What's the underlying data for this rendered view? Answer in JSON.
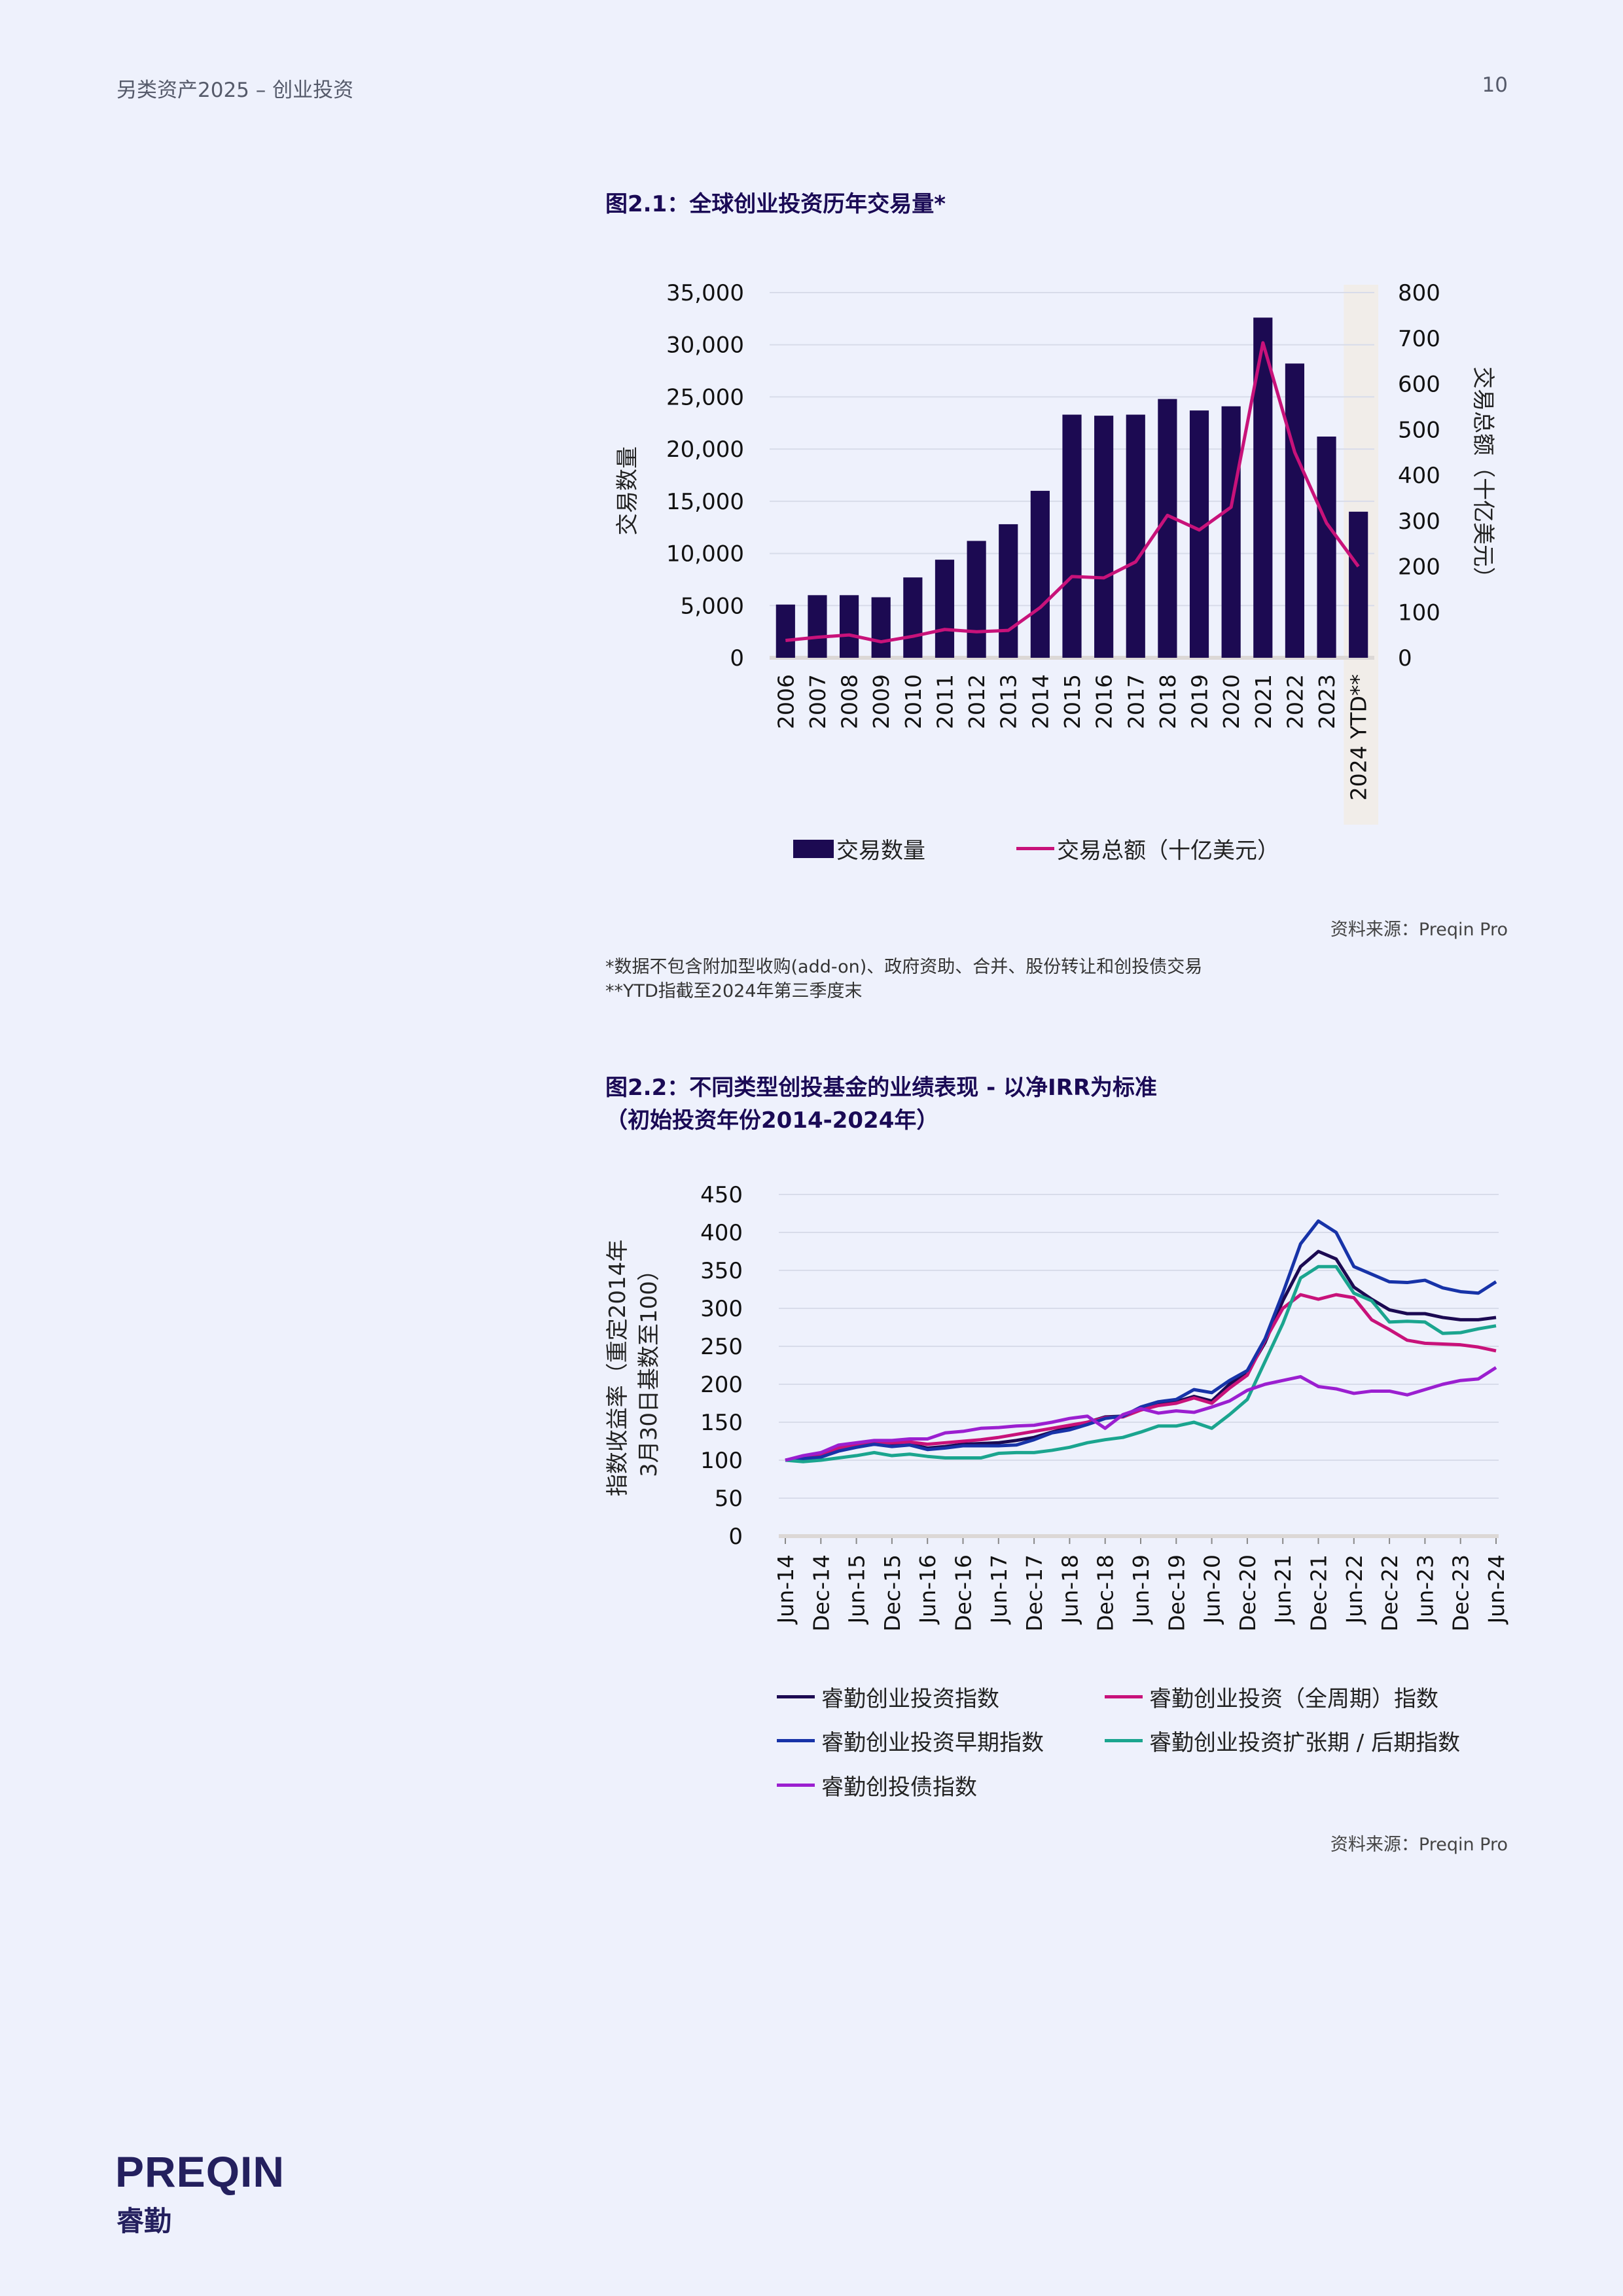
{
  "header": {
    "title": "另类资产2025 – 创业投资",
    "page_number": "10"
  },
  "figure1": {
    "title": "图2.1：全球创业投资历年交易量*",
    "source": "资料来源：Preqin Pro",
    "footnotes": [
      "*数据不包含附加型收购(add-on)、政府资助、合并、股份转让和创投债交易",
      "**YTD指截至2024年第三季度末"
    ]
  },
  "figure2": {
    "title_line1": "图2.2：不同类型创投基金的业绩表现 - 以净IRR为标准",
    "title_line2": "（初始投资年份2014-2024年）",
    "source": "资料来源：Preqin Pro"
  },
  "logo": {
    "text_en": "PREQIN",
    "text_cn": "睿勤"
  },
  "chart_data": [
    {
      "type": "bar+line",
      "categories": [
        "2006",
        "2007",
        "2008",
        "2009",
        "2010",
        "2011",
        "2012",
        "2013",
        "2014",
        "2015",
        "2016",
        "2017",
        "2018",
        "2019",
        "2020",
        "2021",
        "2022",
        "2023",
        "2024 YTD**"
      ],
      "series": [
        {
          "name": "交易数量",
          "type": "bar",
          "axis": "left",
          "color": "#1c0a52",
          "values": [
            5100,
            6000,
            6000,
            5800,
            7700,
            9400,
            11200,
            12800,
            16000,
            23300,
            23200,
            23300,
            24800,
            23700,
            24100,
            32600,
            28200,
            21200,
            14000
          ]
        },
        {
          "name": "交易总额（十亿美元）",
          "type": "line",
          "axis": "right",
          "color": "#c8127a",
          "values": [
            38,
            45,
            50,
            35,
            47,
            62,
            57,
            60,
            110,
            178,
            175,
            210,
            312,
            280,
            330,
            690,
            450,
            295,
            200
          ]
        }
      ],
      "ylabel": "交易数量",
      "y2label": "交易总额（十亿美元）",
      "ylim": [
        0,
        35000
      ],
      "yticks": [
        "0",
        "5,000",
        "10,000",
        "15,000",
        "20,000",
        "25,000",
        "30,000",
        "35,000"
      ],
      "y2lim": [
        0,
        800
      ],
      "y2ticks": [
        "0",
        "100",
        "200",
        "300",
        "400",
        "500",
        "600",
        "700",
        "800"
      ],
      "highlight_category": "2024 YTD**",
      "highlight_color": "#f1ede9",
      "grid": true,
      "legend_position": "bottom"
    },
    {
      "type": "line",
      "x": [
        "Jun-14",
        "Sep-14",
        "Dec-14",
        "Mar-15",
        "Jun-15",
        "Sep-15",
        "Dec-15",
        "Mar-16",
        "Jun-16",
        "Sep-16",
        "Dec-16",
        "Mar-17",
        "Jun-17",
        "Sep-17",
        "Dec-17",
        "Mar-18",
        "Jun-18",
        "Sep-18",
        "Dec-18",
        "Mar-19",
        "Jun-19",
        "Sep-19",
        "Dec-19",
        "Mar-20",
        "Jun-20",
        "Sep-20",
        "Dec-20",
        "Mar-21",
        "Jun-21",
        "Sep-21",
        "Dec-21",
        "Mar-22",
        "Jun-22",
        "Sep-22",
        "Dec-22",
        "Mar-23",
        "Jun-23",
        "Sep-23",
        "Dec-23",
        "Mar-24",
        "Jun-24"
      ],
      "xticks": [
        "Jun-14",
        "Dec-14",
        "Jun-15",
        "Dec-15",
        "Jun-16",
        "Dec-16",
        "Jun-17",
        "Dec-17",
        "Jun-18",
        "Dec-18",
        "Jun-19",
        "Dec-19",
        "Jun-20",
        "Dec-20",
        "Jun-21",
        "Dec-21",
        "Jun-22",
        "Dec-22",
        "Jun-23",
        "Dec-23",
        "Jun-24"
      ],
      "series": [
        {
          "name": "睿勤创业投资指数",
          "color": "#1c0a52",
          "values": [
            100,
            103,
            106,
            113,
            118,
            121,
            119,
            121,
            116,
            118,
            121,
            122,
            123,
            126,
            130,
            137,
            143,
            150,
            157,
            158,
            167,
            173,
            177,
            184,
            178,
            200,
            215,
            255,
            310,
            355,
            375,
            365,
            328,
            312,
            298,
            293,
            293,
            288,
            285,
            285,
            288
          ]
        },
        {
          "name": "睿勤创业投资（全周期）指数",
          "color": "#c8127a",
          "values": [
            100,
            104,
            108,
            116,
            120,
            123,
            123,
            124,
            121,
            123,
            125,
            127,
            130,
            134,
            138,
            142,
            146,
            150,
            156,
            157,
            166,
            172,
            175,
            182,
            175,
            195,
            212,
            258,
            300,
            318,
            312,
            318,
            314,
            285,
            272,
            258,
            254,
            253,
            252,
            249,
            244
          ]
        },
        {
          "name": "睿勤创业投资早期指数",
          "color": "#1733a8",
          "values": [
            100,
            102,
            104,
            112,
            117,
            121,
            118,
            120,
            114,
            116,
            119,
            119,
            119,
            120,
            127,
            136,
            140,
            147,
            155,
            158,
            170,
            177,
            180,
            193,
            189,
            205,
            218,
            260,
            320,
            385,
            415,
            400,
            355,
            345,
            335,
            334,
            337,
            327,
            322,
            320,
            335
          ]
        },
        {
          "name": "睿勤创业投资扩张期 / 后期指数",
          "color": "#1ba58f",
          "values": [
            100,
            98,
            100,
            103,
            106,
            110,
            106,
            108,
            105,
            103,
            103,
            103,
            109,
            110,
            110,
            113,
            117,
            123,
            127,
            130,
            137,
            145,
            145,
            150,
            142,
            160,
            180,
            230,
            280,
            340,
            355,
            355,
            320,
            310,
            282,
            283,
            282,
            267,
            268,
            273,
            277
          ]
        },
        {
          "name": "睿勤创投债指数",
          "color": "#9b1fd0",
          "values": [
            100,
            106,
            110,
            120,
            123,
            126,
            126,
            128,
            128,
            136,
            138,
            142,
            143,
            145,
            146,
            150,
            155,
            158,
            142,
            160,
            168,
            162,
            165,
            163,
            170,
            178,
            192,
            200,
            205,
            210,
            197,
            194,
            188,
            191,
            191,
            186,
            193,
            200,
            205,
            207,
            222
          ]
        }
      ],
      "ylabel": "指数收益率（重定2014年3月30日基数至100）",
      "ylabel_lines": [
        "指数收益率（重定2014年",
        "3月30日基数至100）"
      ],
      "ylim": [
        0,
        450
      ],
      "yticks": [
        "0",
        "50",
        "100",
        "150",
        "200",
        "250",
        "300",
        "350",
        "400",
        "450"
      ],
      "grid": true,
      "legend_position": "bottom"
    }
  ]
}
